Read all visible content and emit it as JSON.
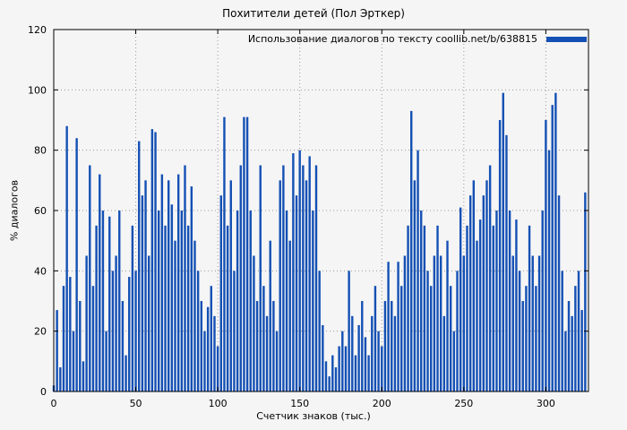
{
  "chart_data": {
    "type": "bar",
    "title": "Похитители детей (Пол Эрткер)",
    "xlabel": "Счетчик знаков (тыс.)",
    "ylabel": "% диалогов",
    "legend": "Использование диалогов по тексту coollib.net/b/638815",
    "legend_position": "top-right-inside",
    "grid": true,
    "xlim": [
      0,
      326
    ],
    "ylim": [
      0,
      120
    ],
    "xticks": [
      0,
      50,
      100,
      150,
      200,
      250,
      300
    ],
    "yticks": [
      0,
      20,
      40,
      60,
      80,
      100,
      120
    ],
    "series_name": "Использование диалогов по тексту coollib.net/b/638815",
    "series_color": "#1450b4",
    "grid_color": "#999999",
    "border_color": "#000000",
    "x_start": 0,
    "x_step": 2,
    "values": [
      2,
      27,
      8,
      35,
      88,
      38,
      20,
      84,
      30,
      10,
      45,
      75,
      35,
      55,
      72,
      60,
      20,
      58,
      40,
      45,
      60,
      30,
      12,
      38,
      55,
      40,
      83,
      65,
      70,
      45,
      87,
      86,
      60,
      72,
      55,
      70,
      62,
      50,
      72,
      60,
      75,
      55,
      68,
      50,
      40,
      30,
      20,
      28,
      35,
      25,
      15,
      65,
      91,
      55,
      70,
      40,
      60,
      75,
      91,
      91,
      60,
      45,
      30,
      75,
      35,
      25,
      50,
      30,
      20,
      70,
      75,
      60,
      50,
      79,
      65,
      80,
      75,
      70,
      78,
      60,
      75,
      40,
      22,
      10,
      5,
      12,
      8,
      15,
      20,
      15,
      40,
      25,
      12,
      22,
      30,
      18,
      12,
      25,
      35,
      20,
      15,
      30,
      43,
      30,
      25,
      43,
      35,
      45,
      55,
      93,
      70,
      80,
      60,
      55,
      40,
      35,
      45,
      55,
      45,
      25,
      50,
      35,
      20,
      40,
      61,
      45,
      55,
      65,
      70,
      50,
      57,
      65,
      70,
      75,
      55,
      60,
      90,
      99,
      85,
      60,
      45,
      57,
      40,
      30,
      35,
      55,
      45,
      35,
      45,
      60,
      90,
      80,
      95,
      99,
      65,
      40,
      20,
      30,
      25,
      35,
      40,
      27,
      66
    ]
  }
}
